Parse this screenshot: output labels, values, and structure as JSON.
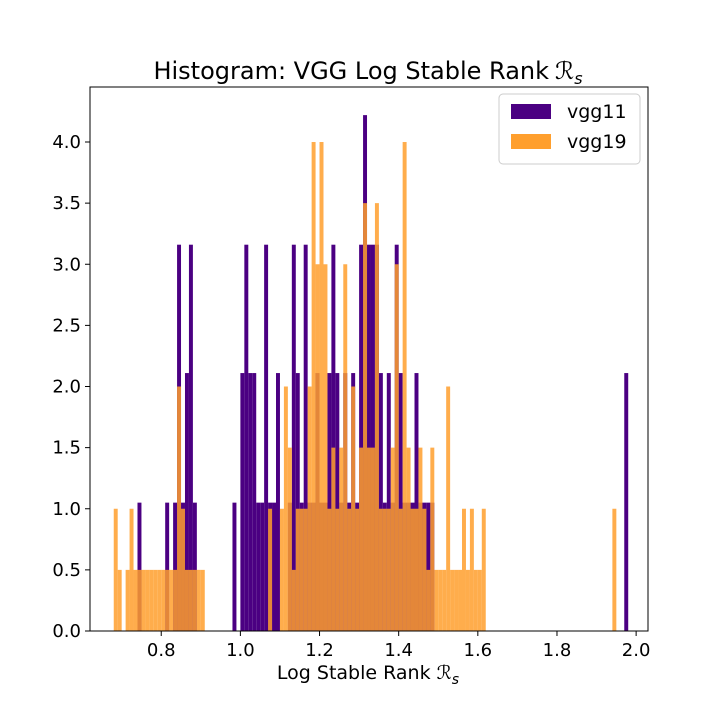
{
  "chart_data": {
    "type": "histogram",
    "title": "Histogram: VGG Log Stable Rank",
    "title_symbol": "ℛ",
    "title_symbol_sub": "s",
    "xlabel": "Log Stable Rank",
    "xlabel_symbol": "ℛ",
    "xlabel_symbol_sub": "s",
    "ylabel": "",
    "xlim": [
      0.62,
      2.03
    ],
    "ylim": [
      0,
      4.45
    ],
    "bin_width": 0.01,
    "xticks": [
      0.8,
      1.0,
      1.2,
      1.4,
      1.6,
      1.8,
      2.0
    ],
    "xtick_labels": [
      "0.8",
      "1.0",
      "1.2",
      "1.4",
      "1.6",
      "1.8",
      "2.0"
    ],
    "yticks": [
      0.0,
      0.5,
      1.0,
      1.5,
      2.0,
      2.5,
      3.0,
      3.5,
      4.0
    ],
    "ytick_labels": [
      "0.0",
      "0.5",
      "1.0",
      "1.5",
      "2.0",
      "2.5",
      "3.0",
      "3.5",
      "4.0"
    ],
    "grid": false,
    "legend_position": "top-right",
    "series": [
      {
        "name": "vgg11",
        "color": "#4b0082",
        "x": [
          0.74,
          0.81,
          0.83,
          0.84,
          0.85,
          0.86,
          0.87,
          0.88,
          0.98,
          1.0,
          1.01,
          1.02,
          1.03,
          1.04,
          1.05,
          1.06,
          1.07,
          1.08,
          1.09,
          1.12,
          1.13,
          1.14,
          1.15,
          1.16,
          1.17,
          1.18,
          1.19,
          1.2,
          1.21,
          1.22,
          1.23,
          1.24,
          1.25,
          1.26,
          1.27,
          1.28,
          1.29,
          1.3,
          1.31,
          1.32,
          1.33,
          1.34,
          1.35,
          1.36,
          1.37,
          1.38,
          1.39,
          1.4,
          1.41,
          1.42,
          1.43,
          1.44,
          1.45,
          1.46,
          1.47,
          1.48,
          1.97
        ],
        "values": [
          1.05,
          1.05,
          1.05,
          3.16,
          1.05,
          2.11,
          3.16,
          1.05,
          1.05,
          2.11,
          3.16,
          2.11,
          2.11,
          1.05,
          1.05,
          3.16,
          1.05,
          1.05,
          2.11,
          1.05,
          3.16,
          2.11,
          1.05,
          3.16,
          1.05,
          1.05,
          2.11,
          1.05,
          1.05,
          2.11,
          3.16,
          2.11,
          1.05,
          2.11,
          1.05,
          2.11,
          1.05,
          3.16,
          4.22,
          3.16,
          3.16,
          3.16,
          2.11,
          1.05,
          2.11,
          1.05,
          3.16,
          2.11,
          1.05,
          1.05,
          1.05,
          2.11,
          1.05,
          1.05,
          1.05,
          1.05,
          2.11
        ]
      },
      {
        "name": "vgg19",
        "color": "#ff9f2d",
        "x": [
          0.68,
          0.69,
          0.71,
          0.72,
          0.73,
          0.74,
          0.75,
          0.76,
          0.77,
          0.78,
          0.79,
          0.8,
          0.81,
          0.82,
          0.83,
          0.84,
          0.85,
          0.86,
          0.87,
          0.88,
          0.89,
          0.9,
          1.07,
          1.1,
          1.11,
          1.12,
          1.13,
          1.14,
          1.15,
          1.16,
          1.17,
          1.18,
          1.19,
          1.2,
          1.21,
          1.22,
          1.23,
          1.24,
          1.25,
          1.26,
          1.27,
          1.28,
          1.29,
          1.3,
          1.31,
          1.32,
          1.33,
          1.34,
          1.35,
          1.36,
          1.37,
          1.38,
          1.39,
          1.4,
          1.41,
          1.42,
          1.43,
          1.44,
          1.45,
          1.46,
          1.47,
          1.48,
          1.49,
          1.5,
          1.51,
          1.52,
          1.53,
          1.54,
          1.55,
          1.56,
          1.57,
          1.58,
          1.59,
          1.6,
          1.61,
          1.94
        ],
        "values": [
          1.0,
          0.5,
          0.5,
          1.0,
          0.5,
          0.5,
          0.5,
          0.5,
          0.5,
          0.5,
          0.5,
          0.5,
          0.5,
          0.5,
          0.5,
          2.0,
          1.0,
          0.5,
          0.5,
          0.5,
          0.5,
          0.5,
          1.0,
          1.0,
          2.0,
          1.5,
          0.5,
          1.0,
          1.0,
          1.0,
          2.0,
          4.0,
          3.0,
          4.0,
          3.0,
          1.0,
          1.5,
          1.0,
          1.5,
          3.0,
          1.0,
          2.0,
          1.0,
          1.5,
          3.5,
          1.5,
          1.5,
          3.5,
          1.0,
          1.0,
          1.0,
          1.5,
          3.0,
          1.0,
          4.0,
          1.5,
          1.0,
          1.0,
          1.5,
          1.0,
          0.5,
          1.5,
          0.5,
          0.5,
          0.5,
          2.0,
          0.5,
          0.5,
          0.5,
          1.0,
          0.5,
          1.0,
          0.5,
          0.5,
          1.0,
          1.0
        ]
      }
    ]
  }
}
